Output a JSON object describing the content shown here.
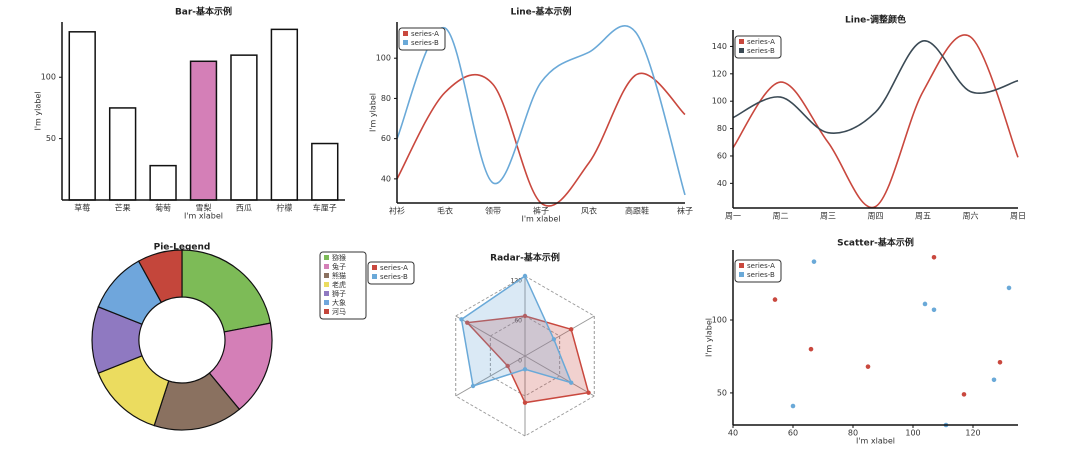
{
  "chart_data": [
    {
      "type": "bar",
      "title": "Bar-基本示例",
      "xlabel": "I'm xlabel",
      "ylabel": "I'm ylabel",
      "categories": [
        "草莓",
        "芒果",
        "葡萄",
        "雪梨",
        "西瓜",
        "柠檬",
        "车厘子"
      ],
      "values": [
        137,
        75,
        28,
        113,
        118,
        139,
        46
      ],
      "colors": [
        "#ffffff",
        "#ffffff",
        "#ffffff",
        "#d47fb7",
        "#ffffff",
        "#ffffff",
        "#ffffff"
      ],
      "ylim": [
        0,
        145
      ],
      "yticks": [
        50,
        100
      ]
    },
    {
      "type": "line",
      "title": "Line-基本示例",
      "xlabel": "I'm xlabel",
      "ylabel": "I'm ylabel",
      "categories": [
        "衬衫",
        "毛衣",
        "领带",
        "裤子",
        "风衣",
        "高跟鞋",
        "袜子"
      ],
      "series": [
        {
          "name": "series-A",
          "color": "#c9483e",
          "values": [
            40,
            83,
            87,
            28,
            48,
            92,
            72
          ]
        },
        {
          "name": "series-B",
          "color": "#6aa9d8",
          "values": [
            60,
            115,
            38,
            88,
            103,
            112,
            32
          ]
        }
      ],
      "ylim": [
        28,
        118
      ],
      "yticks": [
        40,
        60,
        80,
        100
      ]
    },
    {
      "type": "line",
      "title": "Line-调整颜色",
      "categories": [
        "周一",
        "周二",
        "周三",
        "周四",
        "周五",
        "周六",
        "周日"
      ],
      "series": [
        {
          "name": "series-A",
          "color": "#c9483e",
          "values": [
            66,
            114,
            70,
            23,
            107,
            147,
            59
          ]
        },
        {
          "name": "series-B",
          "color": "#3b4a55",
          "values": [
            88,
            103,
            77,
            92,
            144,
            107,
            115
          ]
        }
      ],
      "ylim": [
        22,
        152
      ],
      "yticks": [
        40,
        60,
        80,
        100,
        120,
        140
      ]
    },
    {
      "type": "pie",
      "title": "Pie-Legend",
      "categories": [
        "猕猴",
        "兔子",
        "熊猫",
        "老虎",
        "狮子",
        "大象",
        "河马"
      ],
      "values": [
        22,
        17,
        16,
        14,
        12,
        11,
        8
      ],
      "colors": [
        "#7dbb57",
        "#d47fb7",
        "#8a7160",
        "#ebdc5f",
        "#8f79c1",
        "#6fa6dc",
        "#c4463b"
      ]
    },
    {
      "type": "radar",
      "title": "Radar-基本示例",
      "series": [
        {
          "name": "series-A",
          "color": "#c9483e",
          "values": [
            60,
            80,
            110,
            70,
            30,
            100
          ]
        },
        {
          "name": "series-B",
          "color": "#6aa9d8",
          "values": [
            120,
            50,
            80,
            20,
            90,
            110
          ]
        }
      ],
      "rlim": [
        0,
        120
      ],
      "rticks": [
        0,
        60,
        120
      ]
    },
    {
      "type": "scatter",
      "title": "Scatter-基本示例",
      "xlabel": "I'm xlabel",
      "ylabel": "I'm ylabel",
      "series": [
        {
          "name": "series-A",
          "color": "#c9483e",
          "x": [
            54,
            66,
            85,
            107,
            117,
            129
          ],
          "values": [
            114,
            80,
            68,
            143,
            49,
            71
          ]
        },
        {
          "name": "series-B",
          "color": "#6aa9d8",
          "x": [
            67,
            60,
            104,
            107,
            127,
            132,
            111
          ],
          "values": [
            140,
            41,
            111,
            107,
            59,
            122,
            28
          ]
        }
      ],
      "xlim": [
        40,
        135
      ],
      "xticks": [
        40,
        60,
        80,
        100,
        120
      ],
      "ylim": [
        28,
        148
      ],
      "yticks": [
        50,
        100
      ]
    }
  ]
}
